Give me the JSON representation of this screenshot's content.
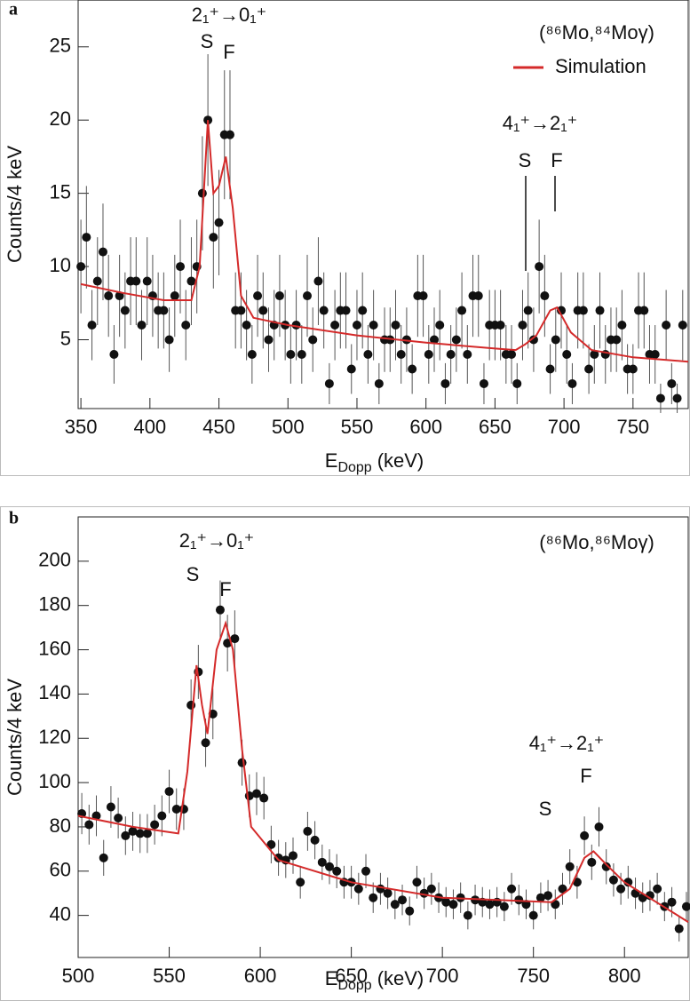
{
  "chart_data": [
    {
      "type": "scatter",
      "panel_label": "a",
      "reaction": "(⁸⁶Mo,⁸⁴Moγ)",
      "annotations": [
        "2₁⁺→0₁⁺",
        "S",
        "F",
        "4₁⁺→2₁⁺",
        "S",
        "F"
      ],
      "xlabel": "E",
      "xlabel_sub": "Dopp",
      "xlabel_unit": "(keV)",
      "ylabel": "Counts/4 keV",
      "xlim": [
        348,
        790
      ],
      "ylim": [
        0.3,
        28.2
      ],
      "xticks": [
        350,
        400,
        450,
        500,
        550,
        600,
        650,
        700,
        750
      ],
      "yticks": [
        5,
        10,
        15,
        20,
        25
      ],
      "legend": "upper right",
      "points": {
        "color": "#111111",
        "x": [
          350,
          354,
          358,
          362,
          366,
          370,
          374,
          378,
          382,
          386,
          390,
          394,
          398,
          402,
          406,
          410,
          414,
          418,
          422,
          426,
          430,
          434,
          438,
          442,
          446,
          450,
          454,
          458,
          462,
          466,
          470,
          474,
          478,
          482,
          486,
          490,
          494,
          498,
          502,
          506,
          510,
          514,
          518,
          522,
          526,
          530,
          534,
          538,
          542,
          546,
          550,
          554,
          558,
          562,
          566,
          570,
          574,
          578,
          582,
          586,
          590,
          594,
          598,
          602,
          606,
          610,
          614,
          618,
          622,
          626,
          630,
          634,
          638,
          642,
          646,
          650,
          654,
          658,
          662,
          666,
          670,
          674,
          678,
          682,
          686,
          690,
          694,
          698,
          702,
          706,
          710,
          714,
          718,
          722,
          726,
          730,
          734,
          738,
          742,
          746,
          750,
          754,
          758,
          762,
          766,
          770,
          774,
          778,
          782,
          786
        ],
        "values": [
          10,
          12,
          6,
          9,
          11,
          8,
          4,
          8,
          7,
          9,
          9,
          6,
          9,
          8,
          7,
          7,
          5,
          8,
          10,
          6,
          9,
          10,
          15,
          20,
          12,
          13,
          19,
          19,
          7,
          7,
          6,
          4,
          8,
          7,
          5,
          6,
          8,
          6,
          4,
          6,
          4,
          8,
          5,
          9,
          7,
          2,
          6,
          7,
          7,
          3,
          6,
          7,
          4,
          6,
          2,
          5,
          5,
          6,
          4,
          5,
          3,
          8,
          8,
          4,
          5,
          6,
          2,
          4,
          5,
          7,
          4,
          8,
          8,
          2,
          6,
          6,
          6,
          4,
          4,
          2,
          6,
          7,
          5,
          10,
          8,
          3,
          5,
          7,
          4,
          2,
          7,
          7,
          3,
          4,
          7,
          4,
          5,
          5,
          6,
          3,
          3,
          7,
          7,
          4,
          4,
          1,
          6,
          2,
          1,
          6
        ],
        "errors": [
          3.2,
          3.5,
          2.4,
          3,
          3.3,
          2.8,
          2,
          2.8,
          2.6,
          3,
          3,
          2.4,
          3,
          2.8,
          2.6,
          2.6,
          2.2,
          2.8,
          3.2,
          2.4,
          3,
          3.2,
          3.9,
          4.5,
          3.5,
          3.6,
          4.4,
          4.4,
          2.6,
          2.6,
          2.4,
          2,
          2.8,
          2.6,
          2.2,
          2.4,
          2.8,
          2.4,
          2,
          2.4,
          2,
          2.8,
          2.2,
          3,
          2.6,
          1.4,
          2.4,
          2.6,
          2.6,
          1.7,
          2.4,
          2.6,
          2,
          2.4,
          1.4,
          2.2,
          2.2,
          2.4,
          2,
          2.2,
          1.7,
          2.8,
          2.8,
          2,
          2.2,
          2.4,
          1.4,
          2,
          2.2,
          2.6,
          2,
          2.8,
          2.8,
          1.4,
          2.4,
          2.4,
          2.4,
          2,
          2,
          1.4,
          2.4,
          2.6,
          2.2,
          3.2,
          2.8,
          1.7,
          2.2,
          2.6,
          2,
          1.4,
          2.6,
          2.6,
          1.7,
          2,
          2.6,
          2,
          2.2,
          2.2,
          2.4,
          1.7,
          1.7,
          2.6,
          2.6,
          2,
          2,
          1,
          2.4,
          1.4,
          1,
          2.4
        ]
      },
      "simulation": {
        "name": "Simulation",
        "color": "#d42a2a",
        "x": [
          350,
          380,
          410,
          430,
          436,
          442,
          446,
          450,
          455,
          460,
          466,
          475,
          500,
          550,
          600,
          650,
          665,
          672,
          680,
          690,
          695,
          705,
          720,
          750,
          790
        ],
        "values": [
          8.8,
          8.2,
          7.7,
          7.7,
          10,
          20,
          15,
          15.5,
          17.5,
          14,
          8,
          6.5,
          6,
          5.3,
          4.8,
          4.4,
          4.3,
          4.7,
          5.3,
          7,
          7.2,
          5.5,
          4.3,
          3.8,
          3.5
        ]
      }
    },
    {
      "type": "scatter",
      "panel_label": "b",
      "reaction": "(⁸⁶Mo,⁸⁶Moγ)",
      "annotations": [
        "2₁⁺→0₁⁺",
        "S",
        "F",
        "4₁⁺→2₁⁺",
        "S",
        "F"
      ],
      "xlabel": "E",
      "xlabel_sub": "Dopp",
      "xlabel_unit": "(keV)",
      "ylabel": "Counts/4 keV",
      "xlim": [
        500,
        835
      ],
      "ylim": [
        21,
        220
      ],
      "xticks": [
        500,
        550,
        600,
        650,
        700,
        750,
        800
      ],
      "yticks": [
        40,
        60,
        80,
        100,
        120,
        140,
        160,
        180,
        200
      ],
      "points": {
        "color": "#111111",
        "x": [
          502,
          506,
          510,
          514,
          518,
          522,
          526,
          530,
          534,
          538,
          542,
          546,
          550,
          554,
          558,
          562,
          566,
          570,
          574,
          578,
          582,
          586,
          590,
          594,
          598,
          602,
          606,
          610,
          614,
          618,
          622,
          626,
          630,
          634,
          638,
          642,
          646,
          650,
          654,
          658,
          662,
          666,
          670,
          674,
          678,
          682,
          686,
          690,
          694,
          698,
          702,
          706,
          710,
          714,
          718,
          722,
          726,
          730,
          734,
          738,
          742,
          746,
          750,
          754,
          758,
          762,
          766,
          770,
          774,
          778,
          782,
          786,
          790,
          794,
          798,
          802,
          806,
          810,
          814,
          818,
          822,
          826,
          830,
          834
        ],
        "values": [
          86,
          81,
          85,
          66,
          89,
          84,
          76,
          78,
          77,
          77,
          81,
          85,
          96,
          88,
          88,
          135,
          150,
          118,
          131,
          178,
          163,
          165,
          109,
          94,
          95,
          93,
          72,
          66,
          65,
          67,
          55,
          78,
          74,
          64,
          62,
          60,
          55,
          55,
          52,
          60,
          48,
          52,
          50,
          45,
          47,
          42,
          55,
          50,
          52,
          48,
          46,
          45,
          48,
          40,
          47,
          46,
          45,
          46,
          44,
          52,
          47,
          45,
          40,
          48,
          49,
          45,
          52,
          62,
          55,
          76,
          64,
          80,
          62,
          56,
          52,
          55,
          50,
          48,
          49,
          52,
          44,
          46,
          34,
          44
        ],
        "errors": [
          9.3,
          9,
          9.2,
          8.1,
          9.4,
          9.2,
          8.7,
          8.8,
          8.8,
          8.8,
          9,
          9.2,
          9.8,
          9.4,
          9.4,
          11.6,
          12.2,
          10.9,
          11.4,
          13.3,
          12.8,
          12.8,
          10.4,
          9.7,
          9.7,
          9.6,
          8.5,
          8.1,
          8.1,
          8.2,
          7.4,
          8.8,
          8.6,
          8,
          7.9,
          7.7,
          7.4,
          7.4,
          7.2,
          7.7,
          6.9,
          7.2,
          7.1,
          6.7,
          6.9,
          6.5,
          7.4,
          7.1,
          7.2,
          6.9,
          6.8,
          6.7,
          6.9,
          6.3,
          6.9,
          6.8,
          6.7,
          6.8,
          6.6,
          7.2,
          6.9,
          6.7,
          6.3,
          6.9,
          7,
          6.7,
          7.2,
          7.9,
          7.4,
          8.7,
          8,
          8.9,
          7.9,
          7.5,
          7.2,
          7.4,
          7.1,
          6.9,
          7,
          7.2,
          6.6,
          6.8,
          5.8,
          6.6
        ]
      },
      "simulation": {
        "color": "#d42a2a",
        "x": [
          500,
          530,
          555,
          560,
          565,
          568,
          571,
          576,
          581,
          585,
          590,
          595,
          610,
          650,
          700,
          760,
          770,
          778,
          783,
          790,
          800,
          835
        ],
        "values": [
          85,
          80,
          77,
          105,
          153,
          135,
          122,
          160,
          172,
          160,
          115,
          80,
          65,
          55,
          48,
          46,
          52,
          66,
          69,
          63,
          55,
          37
        ]
      }
    }
  ]
}
